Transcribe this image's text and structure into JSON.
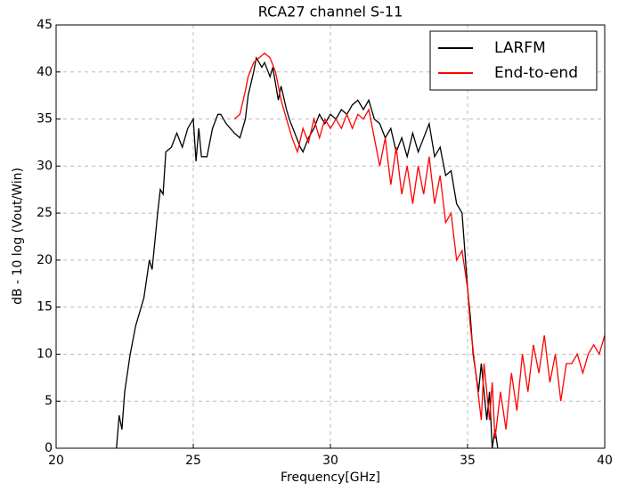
{
  "chart_data": {
    "type": "line",
    "title": "RCA27 channel S-11",
    "x_label": "Frequency[GHz]",
    "y_label": "dB - 10 log (Vout/Win)",
    "xlim": [
      20,
      40
    ],
    "ylim": [
      0,
      45
    ],
    "xticks": [
      20,
      25,
      30,
      35,
      40
    ],
    "yticks": [
      0,
      5,
      10,
      15,
      20,
      25,
      30,
      35,
      40,
      45
    ],
    "grid": true,
    "legend": "upper right",
    "series": [
      {
        "name": "LARFM",
        "color": "#000000",
        "x": [
          22.2,
          22.3,
          22.4,
          22.5,
          22.7,
          22.9,
          23.1,
          23.2,
          23.4,
          23.5,
          23.7,
          23.8,
          23.9,
          24.0,
          24.2,
          24.4,
          24.6,
          24.8,
          25.0,
          25.1,
          25.2,
          25.3,
          25.5,
          25.7,
          25.9,
          26.0,
          26.2,
          26.5,
          26.7,
          26.9,
          27.0,
          27.2,
          27.3,
          27.5,
          27.6,
          27.8,
          27.9,
          28.1,
          28.2,
          28.4,
          28.5,
          28.7,
          28.9,
          29.0,
          29.2,
          29.4,
          29.6,
          29.8,
          30.0,
          30.2,
          30.4,
          30.6,
          30.8,
          31.0,
          31.2,
          31.4,
          31.6,
          31.8,
          32.0,
          32.2,
          32.4,
          32.6,
          32.8,
          33.0,
          33.2,
          33.4,
          33.6,
          33.8,
          34.0,
          34.2,
          34.4,
          34.6,
          34.8,
          34.9,
          35.0,
          35.1,
          35.2,
          35.4,
          35.5,
          35.7,
          35.8,
          35.9,
          36.0,
          36.1
        ],
        "values": [
          0,
          3.5,
          2,
          6,
          10,
          13,
          15,
          16,
          20,
          19,
          25,
          27.5,
          27,
          31.5,
          32,
          33.5,
          32,
          34,
          35,
          30.5,
          34,
          31,
          31,
          34,
          35.5,
          35.5,
          34.5,
          33.5,
          33,
          35,
          37.5,
          40,
          41.5,
          40.5,
          41,
          39.5,
          40.5,
          37,
          38.5,
          36,
          35,
          33.5,
          32,
          31.5,
          33,
          34,
          35.5,
          34.5,
          35.5,
          35,
          36,
          35.5,
          36.5,
          37,
          36,
          37,
          35,
          34.5,
          33,
          34,
          31.5,
          33,
          31,
          33.5,
          31.5,
          33,
          34.5,
          31,
          32,
          29,
          29.5,
          26,
          25,
          21,
          17,
          14,
          10,
          6,
          9,
          3,
          6,
          0,
          2,
          0
        ]
      },
      {
        "name": "End-to-end",
        "color": "#ff0000",
        "x": [
          26.5,
          26.7,
          26.9,
          27.0,
          27.2,
          27.4,
          27.6,
          27.8,
          28.0,
          28.2,
          28.4,
          28.6,
          28.8,
          29.0,
          29.2,
          29.4,
          29.6,
          29.8,
          30.0,
          30.2,
          30.4,
          30.6,
          30.8,
          31.0,
          31.2,
          31.4,
          31.6,
          31.8,
          32.0,
          32.2,
          32.4,
          32.6,
          32.8,
          33.0,
          33.2,
          33.4,
          33.6,
          33.8,
          34.0,
          34.2,
          34.4,
          34.6,
          34.8,
          35.0,
          35.1,
          35.3,
          35.5,
          35.6,
          35.8,
          35.9,
          36.0,
          36.2,
          36.4,
          36.6,
          36.8,
          37.0,
          37.2,
          37.4,
          37.6,
          37.8,
          38.0,
          38.2,
          38.4,
          38.6,
          38.8,
          39.0,
          39.2,
          39.4,
          39.6,
          39.8,
          40.0
        ],
        "values": [
          35,
          35.5,
          38,
          39.5,
          41,
          41.5,
          42,
          41.5,
          40,
          37,
          35,
          33,
          31.5,
          34,
          32.5,
          35,
          33,
          35,
          34,
          35,
          34,
          35.5,
          34,
          35.5,
          35,
          36,
          33,
          30,
          33,
          28,
          32,
          27,
          30,
          26,
          30,
          27,
          31,
          26,
          29,
          24,
          25,
          20,
          21,
          17,
          13,
          8,
          3,
          9,
          3,
          7,
          1,
          6,
          2,
          8,
          4,
          10,
          6,
          11,
          8,
          12,
          7,
          10,
          5,
          9,
          9,
          10,
          8,
          10,
          11,
          10,
          12
        ]
      }
    ]
  }
}
